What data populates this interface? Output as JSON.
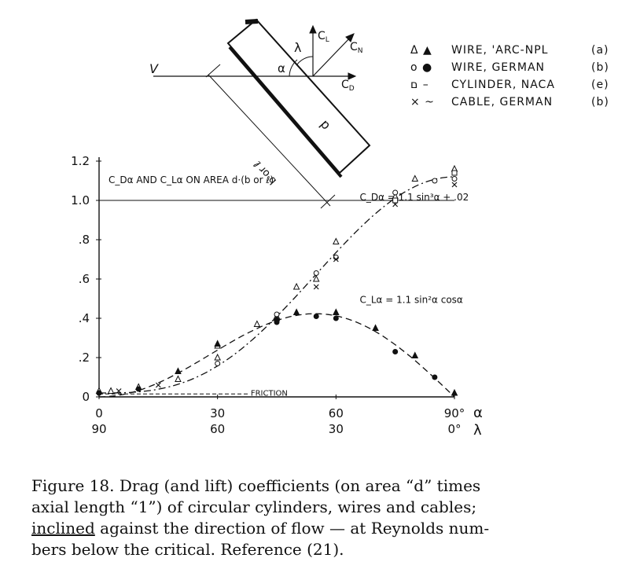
{
  "legend": {
    "rows": [
      {
        "symbols": "Δ ▲",
        "label": "WIRE, 'ARC-NPL",
        "ref": "(a)"
      },
      {
        "symbols": "o ●",
        "label": "WIRE, GERMAN",
        "ref": "(b)"
      },
      {
        "symbols": "ם –",
        "label": "CYLINDER, NACA",
        "ref": "(e)"
      },
      {
        "symbols": "× ~",
        "label": "CABLE, GERMAN",
        "ref": "(b)"
      }
    ]
  },
  "sketch": {
    "v": "V",
    "lambda": "λ",
    "alpha": "α",
    "cl": "C",
    "cl_sub": "L",
    "cn": "C",
    "cn_sub": "N",
    "cd": "C",
    "cd_sub": "D",
    "length": "b or ℓ",
    "diameter": "d"
  },
  "chart_data": {
    "type": "scatter",
    "title": "C_Dα AND C_Lα ON AREA d·(b or ℓ)",
    "xlabel": "α",
    "xlabel2": "λ",
    "xlim": [
      0,
      90
    ],
    "ylim": [
      0,
      1.2
    ],
    "x_ticks": [
      {
        "x": 0,
        "label": "0",
        "label2": "90"
      },
      {
        "x": 30,
        "label": "30",
        "label2": "60"
      },
      {
        "x": 60,
        "label": "60",
        "label2": "30"
      },
      {
        "x": 90,
        "label": "90°",
        "label2": "0°"
      }
    ],
    "y_ticks": [
      {
        "y": 0,
        "label": "0"
      },
      {
        "y": 0.2,
        "label": ".2"
      },
      {
        "y": 0.4,
        "label": ".4"
      },
      {
        "y": 0.6,
        "label": ".6"
      },
      {
        "y": 0.8,
        "label": ".8"
      },
      {
        "y": 1.0,
        "label": "1.0"
      },
      {
        "y": 1.2,
        "label": "1.2"
      }
    ],
    "ref_line": 1.0,
    "curves": [
      {
        "name": "C_Dα = 1.1 sin³α + .02",
        "formula": "drag",
        "dash": "9 4 2 4"
      },
      {
        "name": "C_Lα = 1.1 sin²α cosα",
        "formula": "lift",
        "dash": "8 5"
      }
    ],
    "friction_label": "FRICTION",
    "series": [
      {
        "marker": "triangle-open",
        "points": [
          [
            0,
            0.03
          ],
          [
            3,
            0.03
          ],
          [
            10,
            0.05
          ],
          [
            20,
            0.09
          ],
          [
            30,
            0.2
          ],
          [
            30,
            0.26
          ],
          [
            40,
            0.37
          ],
          [
            45,
            0.41
          ],
          [
            50,
            0.56
          ],
          [
            55,
            0.6
          ],
          [
            60,
            0.79
          ],
          [
            75,
            1.02
          ],
          [
            80,
            1.11
          ],
          [
            90,
            1.16
          ]
        ]
      },
      {
        "marker": "triangle-filled",
        "points": [
          [
            20,
            0.13
          ],
          [
            30,
            0.27
          ],
          [
            45,
            0.4
          ],
          [
            50,
            0.43
          ],
          [
            60,
            0.43
          ],
          [
            70,
            0.35
          ],
          [
            80,
            0.21
          ],
          [
            90,
            0.02
          ]
        ]
      },
      {
        "marker": "circle-open",
        "points": [
          [
            0,
            0.02
          ],
          [
            30,
            0.17
          ],
          [
            45,
            0.42
          ],
          [
            55,
            0.63
          ],
          [
            60,
            0.71
          ],
          [
            75,
            1.04
          ],
          [
            85,
            1.1
          ],
          [
            90,
            1.11
          ]
        ]
      },
      {
        "marker": "circle-filled",
        "points": [
          [
            0,
            0.02
          ],
          [
            10,
            0.04
          ],
          [
            45,
            0.38
          ],
          [
            55,
            0.41
          ],
          [
            60,
            0.4
          ],
          [
            75,
            0.23
          ],
          [
            85,
            0.1
          ]
        ]
      },
      {
        "marker": "cross",
        "points": [
          [
            5,
            0.03
          ],
          [
            15,
            0.06
          ],
          [
            55,
            0.56
          ],
          [
            60,
            0.7
          ],
          [
            75,
            0.98
          ],
          [
            90,
            1.08
          ]
        ]
      },
      {
        "marker": "square-open",
        "points": [
          [
            75,
            1.0
          ],
          [
            90,
            1.14
          ]
        ]
      }
    ]
  },
  "caption": {
    "line1": "Figure 18.  Drag (and lift) coefficients (on area “d” times",
    "line2": "axial length “1”) of circular cylinders, wires and cables;",
    "line3_underlined": "inclined",
    "line3_rest": " against the direction of flow — at Reynolds num-",
    "line4": "bers below the critical.  Reference  (21)."
  }
}
